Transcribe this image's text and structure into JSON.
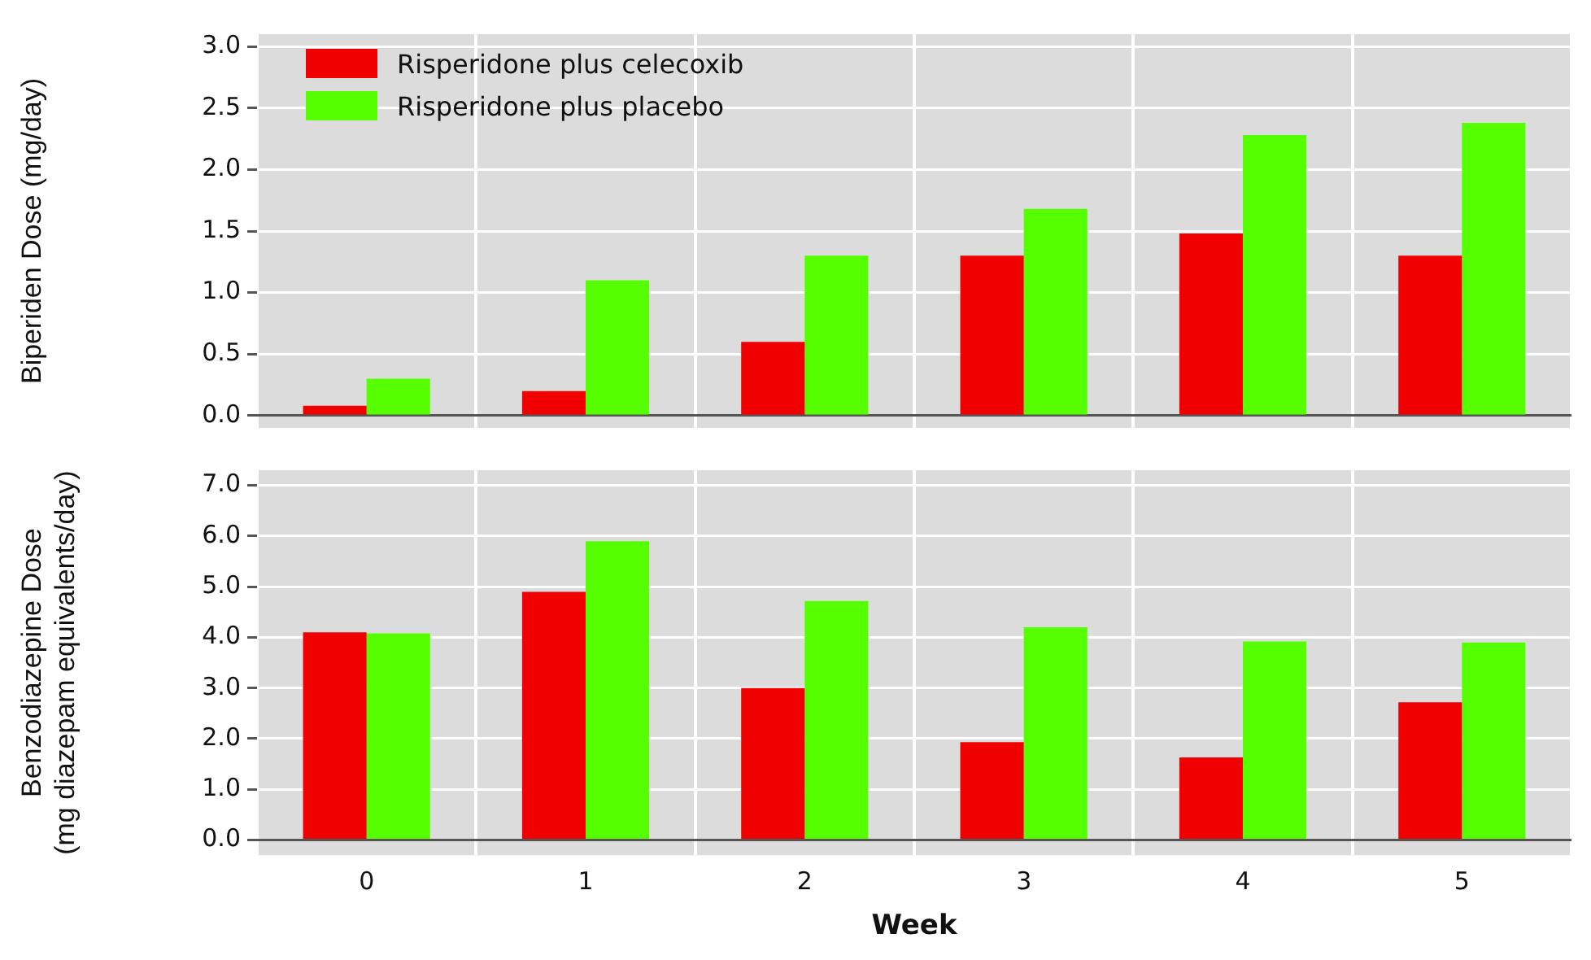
{
  "chart_data": [
    {
      "type": "bar",
      "ylabel": "Biperiden Dose (mg/day)",
      "categories": [
        "0",
        "1",
        "2",
        "3",
        "4",
        "5"
      ],
      "series": [
        {
          "name": "Risperidone plus celecoxib",
          "color": "#f00000",
          "values": [
            0.08,
            0.2,
            0.6,
            1.3,
            1.48,
            1.3
          ]
        },
        {
          "name": "Risperidone plus placebo",
          "color": "#55ff00",
          "values": [
            0.3,
            1.1,
            1.3,
            1.68,
            2.28,
            2.38
          ]
        }
      ],
      "ylim": [
        -0.1,
        3.1
      ],
      "yticks": [
        {
          "value": 0,
          "label": "0.0"
        },
        {
          "value": 0.5,
          "label": "0.5"
        },
        {
          "value": 1,
          "label": "1.0"
        },
        {
          "value": 1.5,
          "label": "1.5"
        },
        {
          "value": 2,
          "label": "2.0"
        },
        {
          "value": 2.5,
          "label": "2.5"
        },
        {
          "value": 3,
          "label": "3.0"
        }
      ],
      "grid": true,
      "legend": "top left",
      "tick_labels": "y"
    },
    {
      "type": "bar",
      "xlabel": "Week",
      "ylabel": "Benzodiazepine Dose\n(mg diazepam equivalents/day)",
      "categories": [
        "0",
        "1",
        "2",
        "3",
        "4",
        "5"
      ],
      "series": [
        {
          "color": "#f00000",
          "values": [
            4.1,
            4.9,
            3.0,
            1.93,
            1.63,
            2.72
          ]
        },
        {
          "color": "#55ff00",
          "values": [
            4.08,
            5.9,
            4.72,
            4.2,
            3.92,
            3.9
          ]
        }
      ],
      "ylim": [
        -0.3,
        7.3
      ],
      "yticks": [
        {
          "value": 0,
          "label": "0.0"
        },
        {
          "value": 1,
          "label": "1.0"
        },
        {
          "value": 2,
          "label": "2.0"
        },
        {
          "value": 3,
          "label": "3.0"
        },
        {
          "value": 4,
          "label": "4.0"
        },
        {
          "value": 5,
          "label": "5.0"
        },
        {
          "value": 6,
          "label": "6.0"
        },
        {
          "value": 7,
          "label": "7.0"
        }
      ],
      "grid": true
    }
  ]
}
